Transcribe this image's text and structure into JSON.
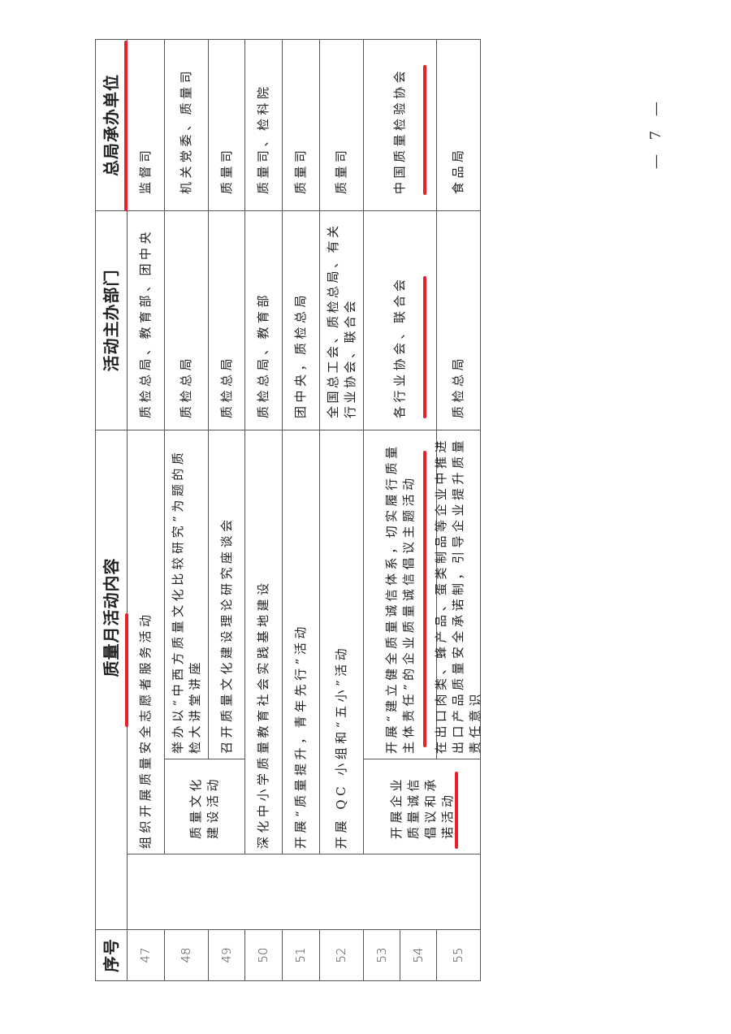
{
  "headers": {
    "no": "序号",
    "content": "质量月活动内容",
    "dept": "活动主办部门",
    "unit": "总局承办单位"
  },
  "rows": [
    {
      "no": "47",
      "content": "组织开展质量安全志愿者服务活动",
      "dept": "质检总局、教育部、团中央",
      "unit": "监督司"
    },
    {
      "no": "48",
      "category": "质量文化建设活动",
      "content": "举办以“中西方质量文化比较研究”为题的质检大讲堂讲座",
      "dept": "质检总局",
      "unit": "机关党委、质量司"
    },
    {
      "no": "49",
      "content": "召开质量文化建设理论研究座谈会",
      "dept": "质检总局",
      "unit": "质量司"
    },
    {
      "no": "50",
      "content": "深化中小学质量教育社会实践基地建设",
      "dept": "质检总局、教育部",
      "unit": "质量司、检科院"
    },
    {
      "no": "51",
      "content": "开展“质量提升，青年先行”活动",
      "dept": "团中央，质检总局",
      "unit": "质量司"
    },
    {
      "no": "52",
      "content": "开展 QC 小组和“五小”活动",
      "dept": "全国总工会、质检总局、有关行业协会、联合会",
      "unit": "质量司"
    },
    {
      "no": "53",
      "category": "开展企业质量诚信倡议和承诺活动",
      "content": "开展“建立健全质量诚信体系，切实履行质量主体责任”的企业质量诚信倡议主题活动",
      "dept": "各行业协会、联合会",
      "unit": "中国质量检验协会"
    },
    {
      "no": "54"
    },
    {
      "no": "55",
      "content": "在出口肉类、蜂产品、蛋类制品等企业中推进出口产品质量安全承诺制，引导企业提升质量责任意识",
      "dept": "质检总局",
      "unit": "食品局"
    }
  ],
  "page_number": "— 7 —",
  "marker_color": "#e8202a"
}
